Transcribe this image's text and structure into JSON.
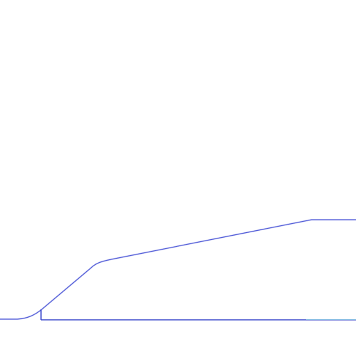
{
  "scene": {
    "background_color": "#ffffff",
    "line_color": "#4a55d6",
    "baseline_color": "#3b48cc",
    "highlight_color": "#8fd0e8"
  }
}
